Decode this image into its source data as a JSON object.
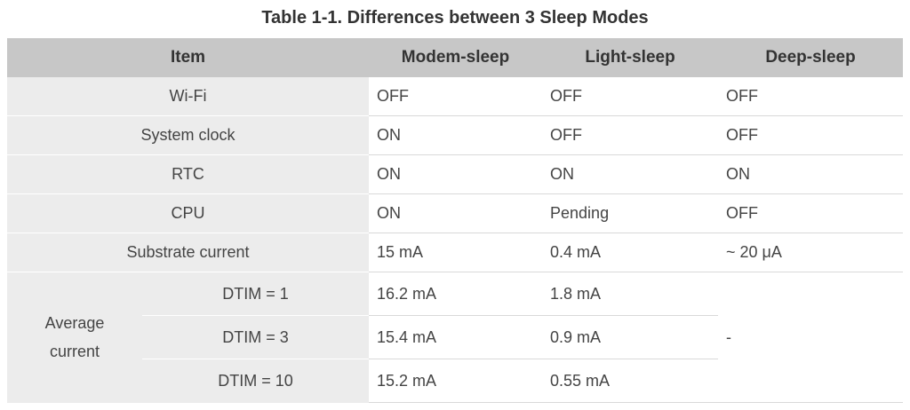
{
  "caption": "Table 1-1. Differences between 3 Sleep Modes",
  "header": {
    "item": "Item",
    "modem": "Modem-sleep",
    "light": "Light-sleep",
    "deep": "Deep-sleep"
  },
  "rows": [
    {
      "item": "Wi-Fi",
      "modem": "OFF",
      "light": "OFF",
      "deep": "OFF"
    },
    {
      "item": "System clock",
      "modem": "ON",
      "light": "OFF",
      "deep": "OFF"
    },
    {
      "item": "RTC",
      "modem": "ON",
      "light": "ON",
      "deep": "ON"
    },
    {
      "item": "CPU",
      "modem": "ON",
      "light": "Pending",
      "deep": "OFF"
    },
    {
      "item": "Substrate current",
      "modem": "15 mA",
      "light": "0.4 mA",
      "deep": "~ 20 μA"
    }
  ],
  "average_current": {
    "label": "Average current",
    "label_line1": "Average",
    "label_line2": "current",
    "dtim_rows": [
      {
        "item": "DTIM = 1",
        "modem": "16.2 mA",
        "light": "1.8 mA"
      },
      {
        "item": "DTIM = 3",
        "modem": "15.4 mA",
        "light": "0.9 mA"
      },
      {
        "item": "DTIM = 10",
        "modem": "15.2 mA",
        "light": "0.55 mA"
      }
    ],
    "deep": "-"
  }
}
